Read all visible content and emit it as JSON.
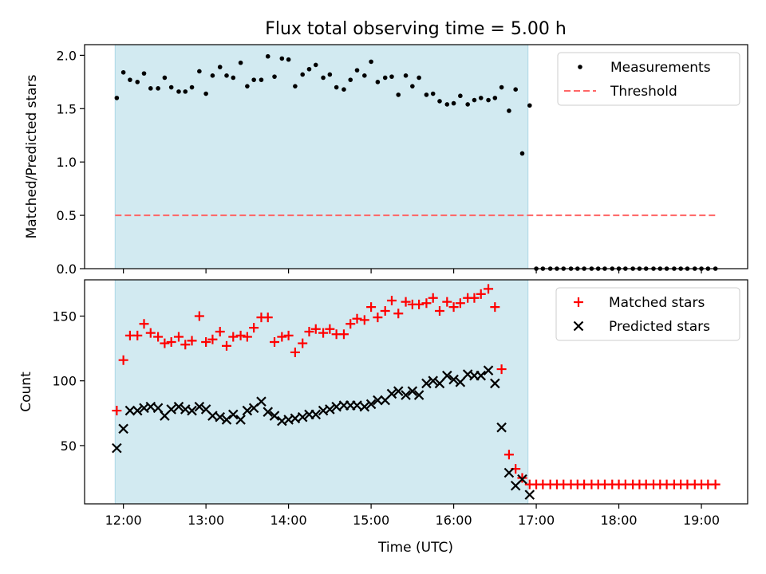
{
  "chart_data": [
    {
      "type": "scatter",
      "title": "Flux total observing time = 5.00 h",
      "xlabel": "",
      "ylabel": "Matched/Predicted stars",
      "ylim": [
        0,
        2.1
      ],
      "yticks": [
        "0.0",
        "0.5",
        "1.0",
        "1.5",
        "2.0"
      ],
      "xlim": [
        11.53,
        19.56
      ],
      "observing_window": [
        11.9,
        16.9
      ],
      "shade_color": "#add8e6",
      "threshold_value": 0.5,
      "threshold_x": [
        11.9,
        19.2
      ],
      "grid": false,
      "legend_position": "top-right",
      "series": [
        {
          "name": "Measurements",
          "color": "#000000",
          "marker": "dot",
          "x": [
            11.92,
            12.0,
            12.08,
            12.17,
            12.25,
            12.33,
            12.42,
            12.5,
            12.58,
            12.67,
            12.75,
            12.83,
            12.92,
            13.0,
            13.08,
            13.17,
            13.25,
            13.33,
            13.42,
            13.5,
            13.58,
            13.67,
            13.75,
            13.83,
            13.92,
            14.0,
            14.08,
            14.17,
            14.25,
            14.33,
            14.42,
            14.5,
            14.58,
            14.67,
            14.75,
            14.83,
            14.92,
            15.0,
            15.08,
            15.17,
            15.25,
            15.33,
            15.42,
            15.5,
            15.58,
            15.67,
            15.75,
            15.83,
            15.92,
            16.0,
            16.08,
            16.17,
            16.25,
            16.33,
            16.42,
            16.5,
            16.58,
            16.67,
            16.75,
            16.83,
            16.92,
            17.0,
            17.08,
            17.17,
            17.25,
            17.33,
            17.42,
            17.5,
            17.58,
            17.67,
            17.75,
            17.83,
            17.92,
            18.0,
            18.08,
            18.17,
            18.25,
            18.33,
            18.42,
            18.5,
            18.58,
            18.67,
            18.75,
            18.83,
            18.92,
            19.0,
            19.08,
            19.17
          ],
          "y": [
            1.6,
            1.84,
            1.77,
            1.75,
            1.83,
            1.69,
            1.69,
            1.79,
            1.7,
            1.66,
            1.66,
            1.7,
            1.85,
            1.64,
            1.81,
            1.89,
            1.81,
            1.79,
            1.93,
            1.71,
            1.77,
            1.77,
            1.99,
            1.8,
            1.97,
            1.96,
            1.71,
            1.82,
            1.87,
            1.91,
            1.79,
            1.82,
            1.7,
            1.68,
            1.77,
            1.86,
            1.81,
            1.94,
            1.75,
            1.79,
            1.8,
            1.63,
            1.81,
            1.71,
            1.79,
            1.63,
            1.64,
            1.57,
            1.54,
            1.55,
            1.62,
            1.54,
            1.58,
            1.6,
            1.58,
            1.6,
            1.7,
            1.48,
            1.68,
            1.08,
            1.53,
            0,
            0,
            0,
            0,
            0,
            0,
            0,
            0,
            0,
            0,
            0,
            0,
            0,
            0,
            0,
            0,
            0,
            0,
            0,
            0,
            0,
            0,
            0,
            0,
            0,
            0,
            0
          ]
        },
        {
          "name": "Threshold",
          "color": "#ff6666",
          "marker": "dashed-line"
        }
      ]
    },
    {
      "type": "scatter",
      "xlabel": "Time (UTC)",
      "ylabel": "Count",
      "ylim": [
        5,
        178
      ],
      "yticks": [
        "50",
        "100",
        "150"
      ],
      "xlim": [
        11.53,
        19.56
      ],
      "xticks": [
        "12:00",
        "13:00",
        "14:00",
        "15:00",
        "16:00",
        "17:00",
        "18:00",
        "19:00"
      ],
      "observing_window": [
        11.9,
        16.9
      ],
      "shade_color": "#add8e6",
      "grid": false,
      "legend_position": "top-right",
      "series": [
        {
          "name": "Matched stars",
          "color": "#ff0000",
          "marker": "plus",
          "x": [
            11.92,
            12.0,
            12.08,
            12.17,
            12.25,
            12.33,
            12.42,
            12.5,
            12.58,
            12.67,
            12.75,
            12.83,
            12.92,
            13.0,
            13.08,
            13.17,
            13.25,
            13.33,
            13.42,
            13.5,
            13.58,
            13.67,
            13.75,
            13.83,
            13.92,
            14.0,
            14.08,
            14.17,
            14.25,
            14.33,
            14.42,
            14.5,
            14.58,
            14.67,
            14.75,
            14.83,
            14.92,
            15.0,
            15.08,
            15.17,
            15.25,
            15.33,
            15.42,
            15.5,
            15.58,
            15.67,
            15.75,
            15.83,
            15.92,
            16.0,
            16.08,
            16.17,
            16.25,
            16.33,
            16.42,
            16.5,
            16.58,
            16.67,
            16.75,
            16.83,
            16.92,
            17.0,
            17.08,
            17.17,
            17.25,
            17.33,
            17.42,
            17.5,
            17.58,
            17.67,
            17.75,
            17.83,
            17.92,
            18.0,
            18.08,
            18.17,
            18.25,
            18.33,
            18.42,
            18.5,
            18.58,
            18.67,
            18.75,
            18.83,
            18.92,
            19.0,
            19.08,
            19.17
          ],
          "y": [
            77,
            116,
            135,
            135,
            144,
            137,
            134,
            129,
            130,
            134,
            128,
            131,
            150,
            130,
            132,
            138,
            127,
            134,
            135,
            134,
            141,
            149,
            149,
            130,
            134,
            135,
            122,
            129,
            138,
            140,
            137,
            140,
            136,
            136,
            144,
            148,
            147,
            157,
            149,
            154,
            162,
            152,
            161,
            159,
            159,
            160,
            164,
            154,
            161,
            157,
            160,
            164,
            164,
            167,
            171,
            157,
            109,
            43,
            32,
            25,
            20,
            20,
            20,
            20,
            20,
            20,
            20,
            20,
            20,
            20,
            20,
            20,
            20,
            20,
            20,
            20,
            20,
            20,
            20,
            20,
            20,
            20,
            20,
            20,
            20,
            20,
            20,
            20
          ]
        },
        {
          "name": "Predicted stars",
          "color": "#000000",
          "marker": "x",
          "x": [
            11.92,
            12.0,
            12.08,
            12.17,
            12.25,
            12.33,
            12.42,
            12.5,
            12.58,
            12.67,
            12.75,
            12.83,
            12.92,
            13.0,
            13.08,
            13.17,
            13.25,
            13.33,
            13.42,
            13.5,
            13.58,
            13.67,
            13.75,
            13.83,
            13.92,
            14.0,
            14.08,
            14.17,
            14.25,
            14.33,
            14.42,
            14.5,
            14.58,
            14.67,
            14.75,
            14.83,
            14.92,
            15.0,
            15.08,
            15.17,
            15.25,
            15.33,
            15.42,
            15.5,
            15.58,
            15.67,
            15.75,
            15.83,
            15.92,
            16.0,
            16.08,
            16.17,
            16.25,
            16.33,
            16.42,
            16.5,
            16.58,
            16.67,
            16.75,
            16.83,
            16.92
          ],
          "y": [
            48,
            63,
            77,
            77,
            79,
            80,
            79,
            73,
            78,
            80,
            78,
            77,
            80,
            78,
            73,
            72,
            70,
            74,
            70,
            77,
            79,
            84,
            76,
            73,
            69,
            70,
            71,
            72,
            74,
            74,
            77,
            78,
            80,
            81,
            81,
            81,
            80,
            82,
            85,
            85,
            90,
            92,
            89,
            92,
            89,
            98,
            100,
            98,
            104,
            101,
            99,
            105,
            104,
            104,
            108,
            98,
            64,
            29,
            19,
            24,
            12
          ]
        }
      ]
    }
  ]
}
